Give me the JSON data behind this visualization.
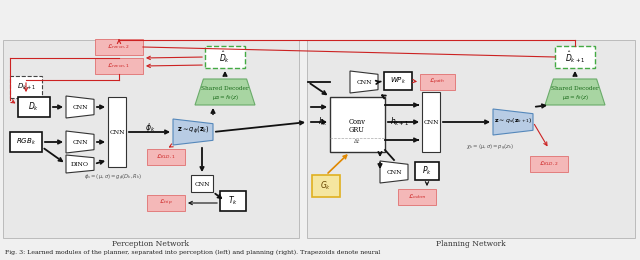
{
  "title": "Fig. 3: Learned modules of the planner, separated into perception (left) and planning (right). Trapezoids denote neural",
  "perception_label": "Perception Network",
  "planning_label": "Planning Network",
  "bg_color": "#f0f0f0",
  "box_white": "#ffffff",
  "box_green": "#a8d5a2",
  "box_green_dk": "#6aab6a",
  "box_pink": "#f4b8b8",
  "box_pink_dk": "#e07070",
  "box_blue": "#b8cce4",
  "box_yellow": "#f5e6a0",
  "box_yellow_dk": "#e0b020",
  "red": "#cc2222",
  "orange": "#e08800",
  "black": "#111111",
  "gray": "#888888",
  "panel_bg": "#e8e8e8",
  "panel_edge": "#bbbbbb"
}
